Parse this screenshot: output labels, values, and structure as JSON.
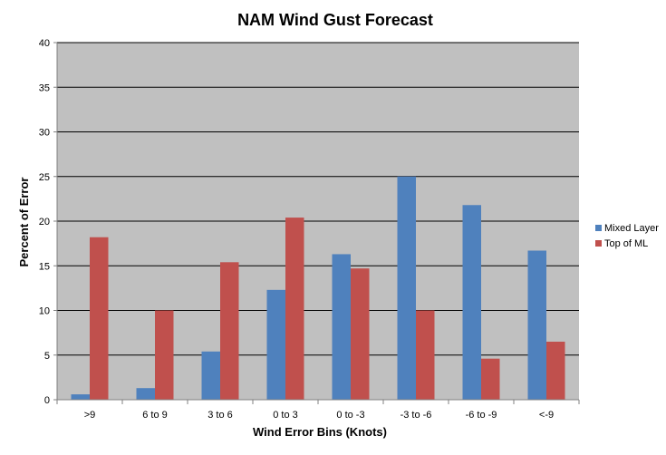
{
  "chart_data": {
    "type": "bar",
    "title": "NAM Wind Gust Forecast",
    "xlabel": "Wind Error Bins (Knots)",
    "ylabel": "Percent of Error",
    "categories": [
      ">9",
      "6 to 9",
      "3 to 6",
      "0 to 3",
      "0 to -3",
      "-3 to -6",
      "-6 to -9",
      "<-9"
    ],
    "series": [
      {
        "name": "Mixed Layer",
        "color": "#4f81bd",
        "values": [
          0.6,
          1.3,
          5.4,
          12.3,
          16.3,
          25.0,
          21.8,
          16.7
        ]
      },
      {
        "name": "Top of ML",
        "color": "#c0504d",
        "values": [
          18.2,
          10.0,
          15.4,
          20.4,
          14.7,
          10.0,
          4.6,
          6.5
        ]
      }
    ],
    "ylim": [
      0,
      40
    ],
    "yticks": [
      "0",
      "5",
      "10",
      "15",
      "20",
      "25",
      "30",
      "35",
      "40"
    ],
    "grid": true,
    "plot_background": "#c0c0c0",
    "legend_position": "right"
  }
}
